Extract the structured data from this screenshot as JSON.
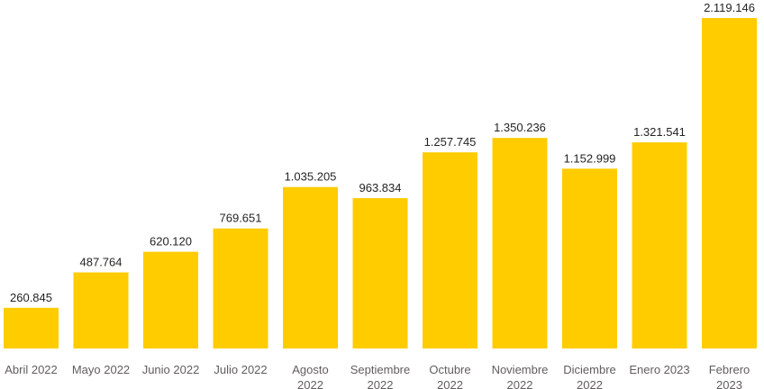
{
  "chart_data": {
    "type": "bar",
    "categories": [
      [
        "Abril 2022"
      ],
      [
        "Mayo 2022"
      ],
      [
        "Junio 2022"
      ],
      [
        "Julio 2022"
      ],
      [
        "Agosto",
        "2022"
      ],
      [
        "Septiembre",
        "2022"
      ],
      [
        "Octubre",
        "2022"
      ],
      [
        "Noviembre",
        "2022"
      ],
      [
        "Diciembre",
        "2022"
      ],
      [
        "Enero 2023"
      ],
      [
        "Febrero",
        "2023"
      ]
    ],
    "values": [
      260845,
      487764,
      620120,
      769651,
      1035205,
      963834,
      1257745,
      1350236,
      1152999,
      1321541,
      2119146
    ],
    "data_labels": [
      "260.845",
      "487.764",
      "620.120",
      "769.651",
      "1.035.205",
      "963.834",
      "1.257.745",
      "1.350.236",
      "1.152.999",
      "1.321.541",
      "2.119.146"
    ],
    "title": "",
    "xlabel": "",
    "ylabel": "",
    "ylim": [
      0,
      2119146
    ],
    "grid": false,
    "legend": "none",
    "bar_color": "#FFCC00",
    "label_color": "#252423",
    "tick_color": "#605E5C"
  }
}
